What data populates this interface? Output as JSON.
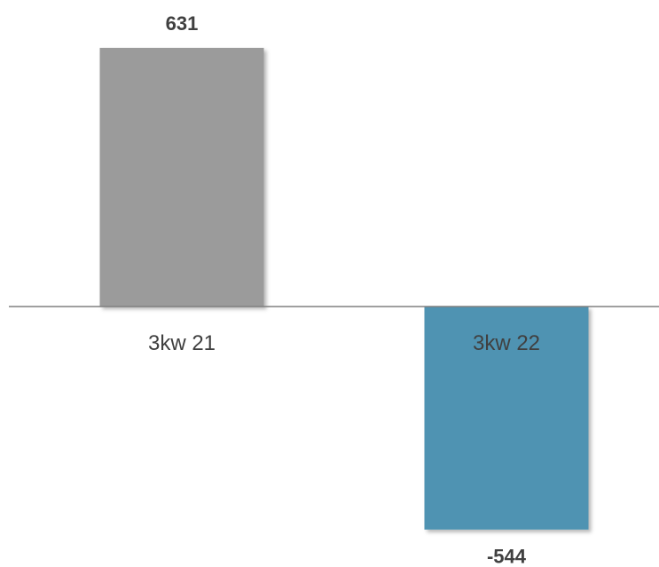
{
  "chart_data": {
    "type": "bar",
    "title": "",
    "xlabel": "",
    "ylabel": "",
    "categories": [
      "3kw 21",
      "3kw 22"
    ],
    "values": [
      631,
      -544
    ],
    "value_labels": [
      "631",
      "-544"
    ],
    "ylim": [
      -544,
      631
    ],
    "grid": false,
    "legend": "none",
    "colors": [
      "#9b9b9b",
      "#4f93b2"
    ],
    "axis_color": "#808080"
  }
}
